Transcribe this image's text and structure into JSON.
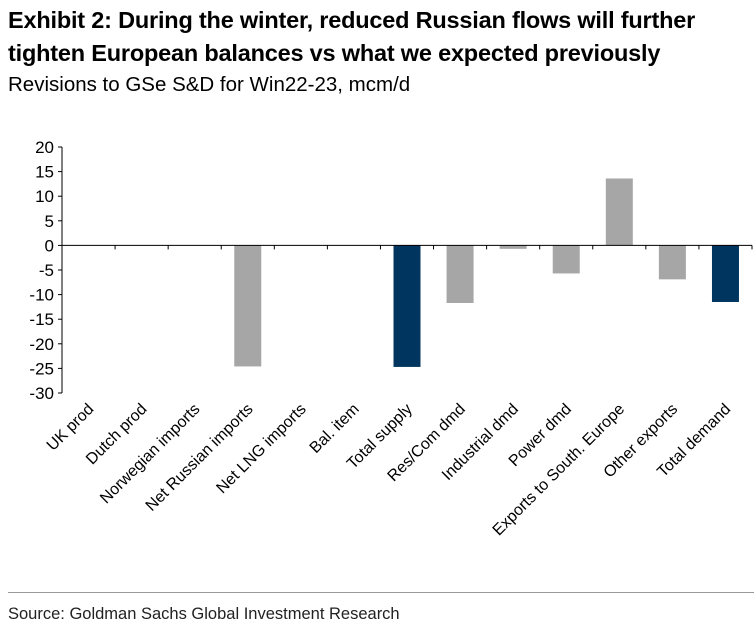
{
  "title_line1": "Exhibit 2: During the winter, reduced Russian flows will further",
  "title_line2": "tighten European balances vs what we expected previously",
  "subtitle": "Revisions to GSe S&D for Win22-23, mcm/d",
  "source": "Source: Goldman Sachs Global Investment Research",
  "chart_data": {
    "type": "bar",
    "categories": [
      "UK prod",
      "Dutch prod",
      "Norwegian imports",
      "Net Russian imports",
      "Net LNG imports",
      "Bal. item",
      "Total supply",
      "Res/Com dmd",
      "Industrial dmd",
      "Power dmd",
      "Exports to South. Europe",
      "Other exports",
      "Total demand"
    ],
    "values": [
      0,
      0,
      0,
      -24.6,
      0,
      0,
      -24.7,
      -11.7,
      -0.7,
      -5.7,
      13.6,
      -6.9,
      -11.5
    ],
    "colors": [
      "#a6a6a6",
      "#a6a6a6",
      "#a6a6a6",
      "#a6a6a6",
      "#a6a6a6",
      "#a6a6a6",
      "#00355f",
      "#a6a6a6",
      "#a6a6a6",
      "#a6a6a6",
      "#a6a6a6",
      "#a6a6a6",
      "#00355f"
    ],
    "ylim": [
      -30,
      20
    ],
    "yticks": [
      20,
      15,
      10,
      5,
      0,
      -5,
      -10,
      -15,
      -20,
      -25,
      -30
    ],
    "grid": false,
    "xlabel": "",
    "ylabel": ""
  }
}
